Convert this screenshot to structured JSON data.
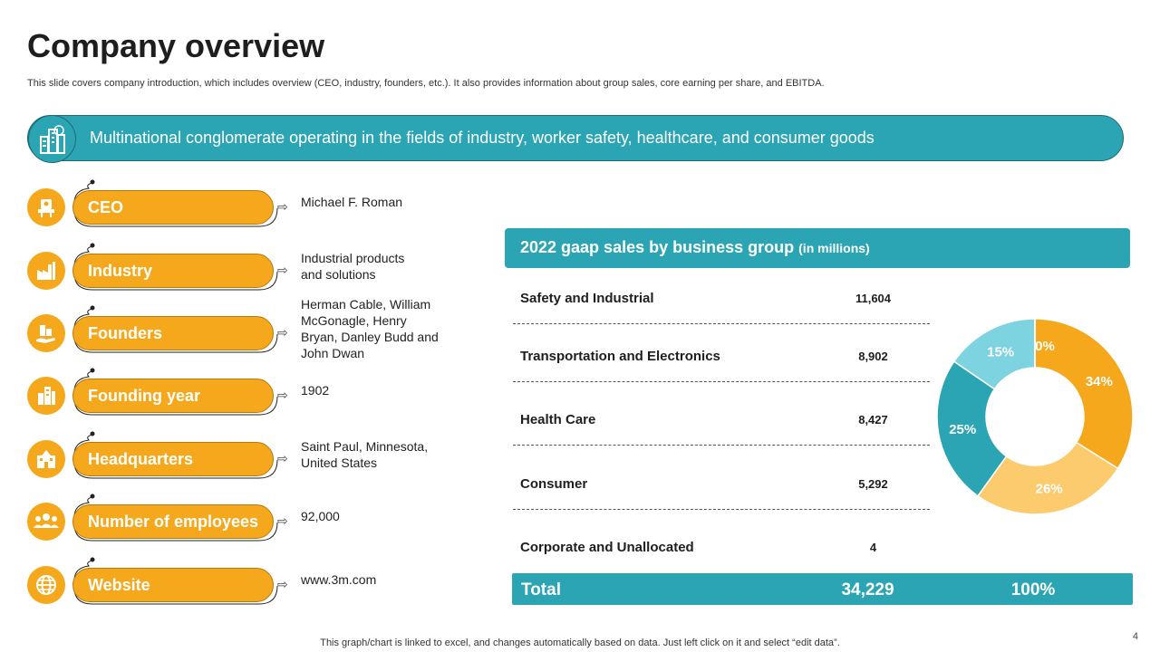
{
  "title": "Company overview",
  "subtitle": "This slide covers company introduction, which includes overview (CEO, industry, founders, etc.). It also provides information about group sales, core earning per share, and EBITDA.",
  "banner": {
    "text": "Multinational  conglomerate operating in the fields of industry, worker safety, healthcare, and consumer goods",
    "icon": "city-buildings-icon"
  },
  "facts": [
    {
      "label": "CEO",
      "value": "Michael F. Roman",
      "icon": "ceo-chair-icon"
    },
    {
      "label": "Industry",
      "value": "Industrial products\nand solutions",
      "icon": "factory-icon"
    },
    {
      "label": "Founders",
      "value": "Herman Cable, William\nMcGonagle, Henry\nBryan, Danley Budd and\nJohn Dwan",
      "icon": "hand-buildings-icon"
    },
    {
      "label": "Founding year",
      "value": "1902",
      "icon": "building-icon"
    },
    {
      "label": "Headquarters",
      "value": "Saint Paul, Minnesota,\nUnited States",
      "icon": "headquarters-icon"
    },
    {
      "label": "Number of employees",
      "value": "92,000",
      "icon": "people-group-icon"
    },
    {
      "label": "Website",
      "value": "www.3m.com",
      "icon": "globe-icon"
    }
  ],
  "chart_data": {
    "type": "pie",
    "title": "2022 gaap sales by business group",
    "title_suffix": "(in millions)",
    "categories": [
      "Safety and Industrial",
      "Transportation and Electronics",
      "Health Care",
      "Consumer",
      "Corporate and Unallocated"
    ],
    "values": [
      11604,
      8902,
      8427,
      5292,
      4
    ],
    "value_labels": [
      "11,604",
      "8,902",
      "8,427",
      "5,292",
      "4"
    ],
    "percent_labels": [
      "34%",
      "26%",
      "25%",
      "15%",
      "0%"
    ],
    "colors": [
      "#f5a81c",
      "#fbcb6e",
      "#2ba5b4",
      "#7dd3df",
      "#e0e0e0"
    ],
    "total_label": "Total",
    "total_value": "34,229",
    "total_percent": "100%",
    "donut": true
  },
  "footer": "This graph/chart is linked to excel,  and changes automatically based on data. Just left click on it and select “edit data”.",
  "page_number": "4"
}
